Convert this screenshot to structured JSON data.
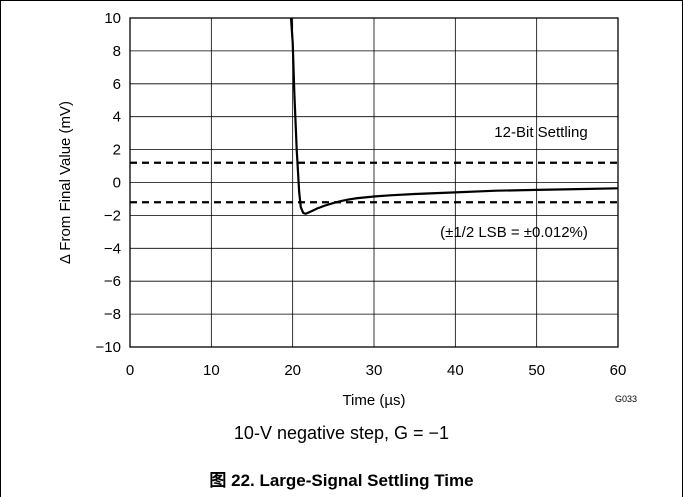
{
  "chart_data": {
    "type": "line",
    "caption": "图 22. Large-Signal Settling Time",
    "subtitle": "10-V negative step, G = −1",
    "xlabel": "Time (µs)",
    "ylabel": "Δ From Final Value (mV)",
    "figure_code": "G033",
    "xlim": [
      0,
      60
    ],
    "ylim": [
      -10,
      10
    ],
    "x_ticks": [
      0,
      10,
      20,
      30,
      40,
      50,
      60
    ],
    "x_tick_labels": [
      "0",
      "10",
      "20",
      "30",
      "40",
      "50",
      "60"
    ],
    "y_ticks": [
      10,
      8,
      6,
      4,
      2,
      0,
      -2,
      -4,
      -6,
      -8,
      -10
    ],
    "y_tick_labels": [
      "10",
      "8",
      "6",
      "4",
      "2",
      "0",
      "−2",
      "−4",
      "−6",
      "−8",
      "−10"
    ],
    "grid": true,
    "thresholds": [
      1.2,
      -1.2
    ],
    "annotations": {
      "label": "12-Bit Settling",
      "note": "(±1/2 LSB = ±0.012%)"
    },
    "series": [
      {
        "x": [
          19.8,
          20.0,
          20.2,
          20.5,
          20.8,
          21.0,
          21.3,
          21.6,
          22.0,
          22.5,
          23,
          24,
          25,
          26,
          27,
          28,
          30,
          32,
          35,
          40,
          45,
          50,
          55,
          60
        ],
        "y": [
          10,
          8.5,
          5.5,
          2.0,
          -0.6,
          -1.5,
          -1.85,
          -1.9,
          -1.82,
          -1.7,
          -1.58,
          -1.4,
          -1.25,
          -1.12,
          -1.02,
          -0.95,
          -0.85,
          -0.78,
          -0.7,
          -0.6,
          -0.5,
          -0.45,
          -0.4,
          -0.35
        ]
      }
    ]
  }
}
